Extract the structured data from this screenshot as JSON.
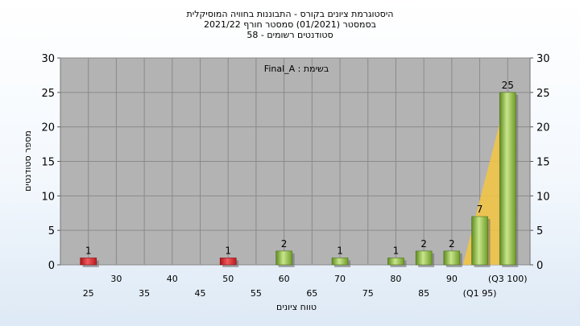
{
  "chart_data": {
    "type": "bar",
    "title": [
      "היסטוגרמת ציונים בקורס - התבוננות בחוויה המוסיקלית",
      "בסמסטר  (01/2021)  סמסטר חורף 2021/22",
      "סטודנטים רשומים - 58"
    ],
    "annotation": "Final_A : בשימת",
    "xlabel": "טווח ציונים",
    "ylabel": "מספר סטודנטים",
    "ylim": [
      0,
      30
    ],
    "yticks": [
      0,
      5,
      10,
      15,
      20,
      25,
      30
    ],
    "xlim": [
      20,
      104
    ],
    "x_tick_labels": [
      {
        "x": 25,
        "label": "25",
        "row": 2
      },
      {
        "x": 30,
        "label": "30",
        "row": 1
      },
      {
        "x": 35,
        "label": "35",
        "row": 2
      },
      {
        "x": 40,
        "label": "40",
        "row": 1
      },
      {
        "x": 45,
        "label": "45",
        "row": 2
      },
      {
        "x": 50,
        "label": "50",
        "row": 1
      },
      {
        "x": 55,
        "label": "55",
        "row": 2
      },
      {
        "x": 60,
        "label": "60",
        "row": 1
      },
      {
        "x": 65,
        "label": "65",
        "row": 2
      },
      {
        "x": 70,
        "label": "70",
        "row": 1
      },
      {
        "x": 75,
        "label": "75",
        "row": 2
      },
      {
        "x": 80,
        "label": "80",
        "row": 1
      },
      {
        "x": 85,
        "label": "85",
        "row": 2
      },
      {
        "x": 90,
        "label": "90",
        "row": 1
      },
      {
        "x": 95,
        "label": "(Q1 95)",
        "row": 2
      },
      {
        "x": 100,
        "label": "(Q3 100)",
        "row": 1
      }
    ],
    "bars": [
      {
        "x": 25,
        "value": 1,
        "color": "red"
      },
      {
        "x": 50,
        "value": 1,
        "color": "red"
      },
      {
        "x": 60,
        "value": 2,
        "color": "green"
      },
      {
        "x": 70,
        "value": 1,
        "color": "green"
      },
      {
        "x": 80,
        "value": 1,
        "color": "green"
      },
      {
        "x": 85,
        "value": 2,
        "color": "green"
      },
      {
        "x": 90,
        "value": 2,
        "color": "green"
      },
      {
        "x": 95,
        "value": 7,
        "color": "green"
      },
      {
        "x": 100,
        "value": 25,
        "color": "green"
      }
    ],
    "quartile_band": {
      "from_x": 92,
      "to_x": 100,
      "color": "#f5c542"
    },
    "grid": true,
    "colors": {
      "plot_bg": "#b3b3b3",
      "grid": "#8a8a8a",
      "red_bar": "#d9262a",
      "green_bar": "#8fbf3a"
    }
  }
}
